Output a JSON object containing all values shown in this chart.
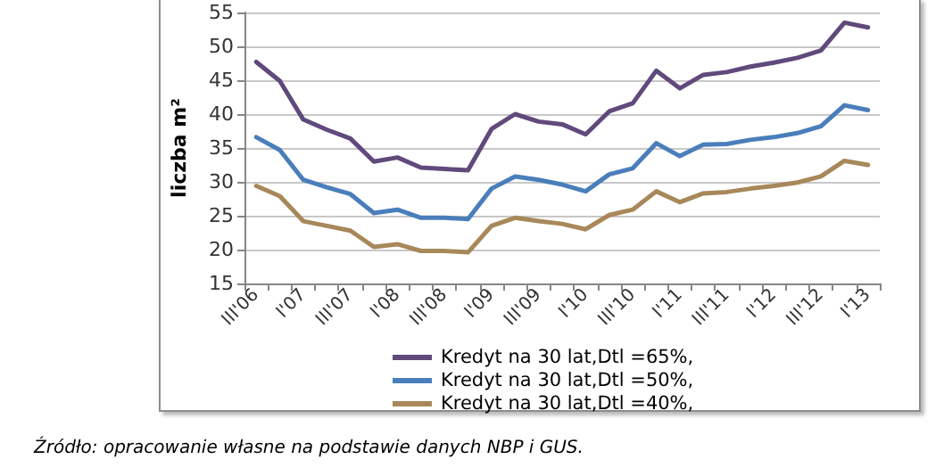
{
  "chart_data": {
    "type": "line",
    "ylabel": "liczba m²",
    "categories": [
      "III'06",
      null,
      "I'07",
      null,
      "III'07",
      null,
      "I'08",
      null,
      "III'08",
      null,
      "I'09",
      null,
      "III'09",
      null,
      "I'10",
      null,
      "III'10",
      null,
      "I'11",
      null,
      "III'11",
      null,
      "I'12",
      null,
      "III'12",
      null,
      "I'13"
    ],
    "series": [
      {
        "name": "Kredyt na 30 lat,Dtl =65%,",
        "color": "#604a7b",
        "values": [
          47.7,
          44.9,
          39.2,
          37.7,
          36.4,
          33.0,
          33.6,
          32.1,
          31.9,
          31.7,
          37.8,
          40.0,
          38.9,
          38.5,
          37.0,
          40.4,
          41.6,
          46.4,
          43.8,
          45.8,
          46.2,
          47.0,
          47.6,
          48.3,
          49.4,
          53.5,
          52.8
        ]
      },
      {
        "name": "Kredyt na 30 lat,Dtl =50%,",
        "color": "#4a7ebb",
        "values": [
          36.6,
          34.7,
          30.3,
          29.2,
          28.2,
          25.4,
          25.9,
          24.7,
          24.7,
          24.5,
          29.0,
          30.8,
          30.3,
          29.6,
          28.6,
          31.1,
          32.0,
          35.7,
          33.8,
          35.5,
          35.6,
          36.2,
          36.6,
          37.2,
          38.2,
          41.3,
          40.6
        ]
      },
      {
        "name": "Kredyt na 30 lat,Dtl =40%,",
        "color": "#a8885a",
        "values": [
          29.4,
          27.9,
          24.2,
          23.5,
          22.8,
          20.4,
          20.8,
          19.8,
          19.8,
          19.6,
          23.5,
          24.7,
          24.2,
          23.8,
          23.0,
          25.1,
          25.9,
          28.6,
          27.0,
          28.3,
          28.5,
          29.0,
          29.4,
          29.9,
          30.8,
          33.1,
          32.5
        ]
      }
    ],
    "ylim": [
      15,
      55
    ],
    "yticks": [
      15,
      20,
      25,
      30,
      35,
      40,
      45,
      50,
      55
    ],
    "grid": "y",
    "legend": "bottom",
    "marker": "none",
    "line_style": "solid",
    "annotations": [
      "Źródło: opracowanie własne na podstawie danych NBP i GUS."
    ]
  }
}
